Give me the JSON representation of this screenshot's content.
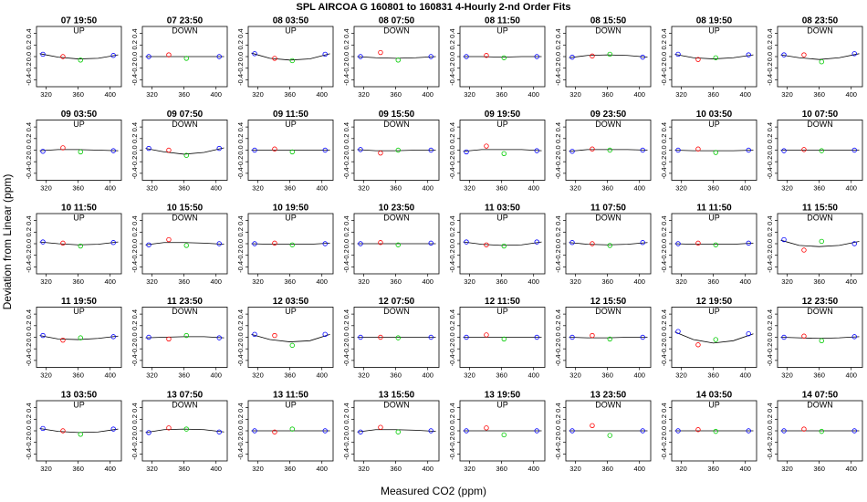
{
  "chart_data": {
    "type": "scatter",
    "title": "SPL AIRCOA G 160801 to 160831 4-Hourly 2-nd Order Fits",
    "x_label": "Measured CO2 (ppm)",
    "y_label": "Deviation from Linear (ppm)",
    "xlim": [
      308,
      414
    ],
    "ylim": [
      -0.52,
      0.52
    ],
    "xticks": [
      320,
      360,
      400
    ],
    "yticks": [
      -0.4,
      -0.2,
      {
        "value": 0,
        "label": "0.0"
      },
      0.2,
      0.4
    ],
    "x": [
      316,
      341,
      363,
      404
    ],
    "point_colors": [
      "#0000ff",
      "#ff0000",
      "#00cc00",
      "#0000ff"
    ],
    "fit_x": [
      312,
      335,
      360,
      385,
      410
    ],
    "fit_color": "#000000",
    "panels": [
      {
        "title": "07 19:50",
        "subtitle": "UP",
        "y": [
          0.04,
          0.0,
          -0.06,
          0.02
        ],
        "fit": [
          0.05,
          -0.01,
          -0.04,
          -0.03,
          0.03
        ]
      },
      {
        "title": "07 23:50",
        "subtitle": "DOWN",
        "y": [
          0.0,
          0.03,
          -0.03,
          0.0
        ],
        "fit": [
          0,
          0,
          0,
          0,
          0
        ]
      },
      {
        "title": "08 03:50",
        "subtitle": "UP",
        "y": [
          0.05,
          -0.03,
          -0.07,
          0.04
        ],
        "fit": [
          0.06,
          -0.03,
          -0.06,
          -0.04,
          0.05
        ]
      },
      {
        "title": "08 07:50",
        "subtitle": "DOWN",
        "y": [
          0.0,
          0.07,
          -0.06,
          0.0
        ],
        "fit": [
          0.0,
          -0.02,
          -0.03,
          -0.02,
          0.0
        ]
      },
      {
        "title": "08 11:50",
        "subtitle": "UP",
        "y": [
          0.0,
          0.02,
          -0.02,
          0.0
        ],
        "fit": [
          0,
          0,
          -0.01,
          0,
          0
        ]
      },
      {
        "title": "08 15:50",
        "subtitle": "DOWN",
        "y": [
          -0.01,
          0.01,
          0.04,
          -0.01
        ],
        "fit": [
          -0.02,
          0.02,
          0.03,
          0.02,
          -0.01
        ]
      },
      {
        "title": "08 19:50",
        "subtitle": "UP",
        "y": [
          0.04,
          -0.05,
          -0.02,
          0.03
        ],
        "fit": [
          0.04,
          -0.02,
          -0.04,
          -0.02,
          0.03
        ]
      },
      {
        "title": "08 23:50",
        "subtitle": "DOWN",
        "y": [
          0.03,
          0.03,
          -0.09,
          0.05
        ],
        "fit": [
          0.03,
          -0.02,
          -0.05,
          -0.02,
          0.05
        ]
      },
      {
        "title": "09 03:50",
        "subtitle": "UP",
        "y": [
          -0.02,
          0.04,
          -0.03,
          -0.01
        ],
        "fit": [
          -0.01,
          0.01,
          0.01,
          0,
          -0.01
        ]
      },
      {
        "title": "09 07:50",
        "subtitle": "DOWN",
        "y": [
          0.03,
          0.0,
          -0.09,
          0.03
        ],
        "fit": [
          0.03,
          -0.03,
          -0.07,
          -0.04,
          0.04
        ]
      },
      {
        "title": "09 11:50",
        "subtitle": "UP",
        "y": [
          0.0,
          0.02,
          -0.03,
          0.0
        ],
        "fit": [
          0,
          0,
          0,
          0,
          0
        ]
      },
      {
        "title": "09 15:50",
        "subtitle": "DOWN",
        "y": [
          0.01,
          -0.05,
          0.0,
          0.0
        ],
        "fit": [
          0.01,
          -0.01,
          -0.01,
          0,
          0
        ]
      },
      {
        "title": "09 19:50",
        "subtitle": "UP",
        "y": [
          -0.03,
          0.07,
          -0.06,
          -0.01
        ],
        "fit": [
          -0.02,
          0.01,
          0.01,
          0.01,
          -0.01
        ]
      },
      {
        "title": "09 23:50",
        "subtitle": "DOWN",
        "y": [
          -0.02,
          0.02,
          0.0,
          0.0
        ],
        "fit": [
          -0.02,
          0.01,
          0.01,
          0.01,
          0
        ]
      },
      {
        "title": "10 03:50",
        "subtitle": "UP",
        "y": [
          0.0,
          0.02,
          -0.04,
          0.0
        ],
        "fit": [
          0,
          -0.01,
          -0.01,
          -0.01,
          0
        ]
      },
      {
        "title": "10 07:50",
        "subtitle": "DOWN",
        "y": [
          -0.01,
          0.01,
          -0.01,
          0.0
        ],
        "fit": [
          0,
          0,
          0,
          0,
          0
        ]
      },
      {
        "title": "10 11:50",
        "subtitle": "UP",
        "y": [
          0.03,
          0.01,
          -0.04,
          0.02
        ],
        "fit": [
          0.03,
          0,
          -0.02,
          -0.01,
          0.03
        ]
      },
      {
        "title": "10 15:50",
        "subtitle": "DOWN",
        "y": [
          -0.02,
          0.07,
          -0.03,
          0.0
        ],
        "fit": [
          -0.02,
          0.02,
          0.02,
          0.01,
          -0.01
        ]
      },
      {
        "title": "10 19:50",
        "subtitle": "UP",
        "y": [
          0.0,
          0.01,
          -0.02,
          0.0
        ],
        "fit": [
          0,
          -0.01,
          -0.01,
          -0.01,
          0.01
        ]
      },
      {
        "title": "10 23:50",
        "subtitle": "DOWN",
        "y": [
          0.0,
          0.02,
          -0.02,
          0.01
        ],
        "fit": [
          0,
          0,
          0,
          0,
          0
        ]
      },
      {
        "title": "11 03:50",
        "subtitle": "UP",
        "y": [
          0.03,
          -0.02,
          -0.04,
          0.03
        ],
        "fit": [
          0.03,
          -0.01,
          -0.03,
          -0.02,
          0.03
        ]
      },
      {
        "title": "11 07:50",
        "subtitle": "DOWN",
        "y": [
          0.02,
          0.0,
          -0.03,
          0.02
        ],
        "fit": [
          0.02,
          -0.01,
          -0.02,
          -0.01,
          0.02
        ]
      },
      {
        "title": "11 11:50",
        "subtitle": "UP",
        "y": [
          0.0,
          0.01,
          -0.02,
          0.01
        ],
        "fit": [
          0,
          -0.01,
          -0.01,
          -0.01,
          0.01
        ]
      },
      {
        "title": "11 15:50",
        "subtitle": "DOWN",
        "y": [
          0.07,
          -0.11,
          0.04,
          0.0
        ],
        "fit": [
          0.06,
          -0.03,
          -0.05,
          -0.03,
          0.04
        ]
      },
      {
        "title": "11 19:50",
        "subtitle": "UP",
        "y": [
          0.03,
          -0.05,
          -0.01,
          0.01
        ],
        "fit": [
          0.03,
          -0.03,
          -0.04,
          -0.02,
          0.02
        ]
      },
      {
        "title": "11 23:50",
        "subtitle": "DOWN",
        "y": [
          0.0,
          -0.03,
          0.03,
          -0.01
        ],
        "fit": [
          -0.01,
          0,
          0.01,
          0.01,
          -0.01
        ]
      },
      {
        "title": "12 03:50",
        "subtitle": "UP",
        "y": [
          0.05,
          0.03,
          -0.14,
          0.05
        ],
        "fit": [
          0.05,
          -0.04,
          -0.08,
          -0.06,
          0.05
        ]
      },
      {
        "title": "12 07:50",
        "subtitle": "DOWN",
        "y": [
          0.0,
          0.0,
          -0.01,
          0.0
        ],
        "fit": [
          0,
          0,
          0,
          0,
          0
        ]
      },
      {
        "title": "12 11:50",
        "subtitle": "UP",
        "y": [
          0.0,
          0.04,
          -0.03,
          0.0
        ],
        "fit": [
          0,
          0,
          0,
          0,
          0
        ]
      },
      {
        "title": "12 15:50",
        "subtitle": "DOWN",
        "y": [
          0.0,
          0.03,
          -0.03,
          0.0
        ],
        "fit": [
          0,
          -0.01,
          -0.01,
          0,
          0
        ]
      },
      {
        "title": "12 19:50",
        "subtitle": "UP",
        "y": [
          0.1,
          -0.13,
          -0.04,
          0.06
        ],
        "fit": [
          0.09,
          -0.04,
          -0.1,
          -0.06,
          0.06
        ]
      },
      {
        "title": "12 23:50",
        "subtitle": "DOWN",
        "y": [
          0.0,
          0.02,
          -0.06,
          0.01
        ],
        "fit": [
          0,
          -0.01,
          -0.02,
          -0.01,
          0.01
        ]
      },
      {
        "title": "13 03:50",
        "subtitle": "UP",
        "y": [
          0.04,
          0.0,
          -0.06,
          0.03
        ],
        "fit": [
          0.04,
          -0.01,
          -0.03,
          -0.02,
          0.03
        ]
      },
      {
        "title": "13 07:50",
        "subtitle": "DOWN",
        "y": [
          -0.03,
          0.05,
          0.03,
          -0.02
        ],
        "fit": [
          -0.03,
          0.02,
          0.03,
          0.02,
          -0.02
        ]
      },
      {
        "title": "13 11:50",
        "subtitle": "UP",
        "y": [
          0.0,
          -0.02,
          0.03,
          0.0
        ],
        "fit": [
          0,
          0,
          0,
          0,
          0
        ]
      },
      {
        "title": "13 15:50",
        "subtitle": "DOWN",
        "y": [
          -0.02,
          0.06,
          -0.02,
          0.0
        ],
        "fit": [
          -0.02,
          0.02,
          0.02,
          0.01,
          -0.01
        ]
      },
      {
        "title": "13 19:50",
        "subtitle": "UP",
        "y": [
          0.0,
          0.05,
          -0.07,
          0.0
        ],
        "fit": [
          0,
          0,
          0,
          0,
          0
        ]
      },
      {
        "title": "13 23:50",
        "subtitle": "DOWN",
        "y": [
          0.0,
          0.09,
          -0.08,
          0.0
        ],
        "fit": [
          0,
          0,
          0,
          0,
          0
        ]
      },
      {
        "title": "14 03:50",
        "subtitle": "UP",
        "y": [
          0.0,
          0.02,
          -0.01,
          0.0
        ],
        "fit": [
          0,
          0,
          0,
          0,
          0
        ]
      },
      {
        "title": "14 07:50",
        "subtitle": "DOWN",
        "y": [
          0.0,
          0.03,
          -0.01,
          0.0
        ],
        "fit": [
          0,
          0,
          0,
          0,
          0
        ]
      }
    ]
  }
}
